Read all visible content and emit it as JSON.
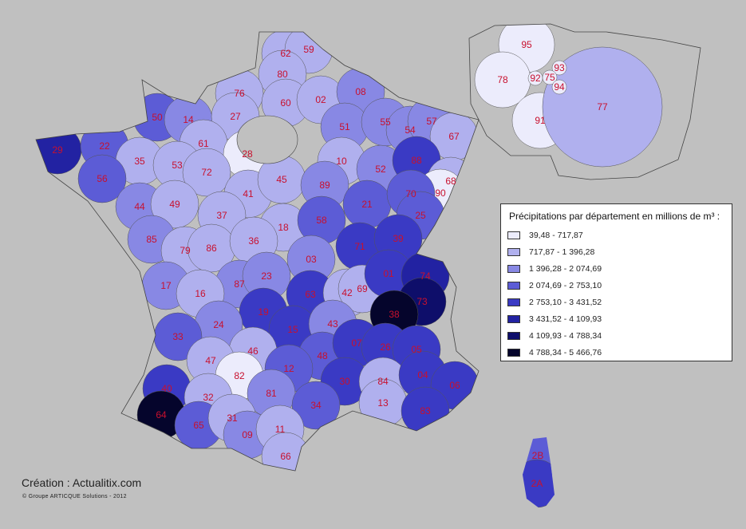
{
  "legend": {
    "title": "Précipitations par département en millions de m³ :",
    "classes": [
      {
        "label": "39,48 - 717,87",
        "color": "#ececfc"
      },
      {
        "label": "717,87 - 1 396,28",
        "color": "#b0b0ee"
      },
      {
        "label": "1 396,28 - 2 074,69",
        "color": "#8888e4"
      },
      {
        "label": "2 074,69 - 2 753,10",
        "color": "#5c5cd6"
      },
      {
        "label": "2 753,10 - 3 431,52",
        "color": "#3a3ac4"
      },
      {
        "label": "3 431,52 - 4 109,93",
        "color": "#2222a2"
      },
      {
        "label": "4 109,93 - 4 788,34",
        "color": "#0e0e6a"
      },
      {
        "label": "4 788,34 - 5 466,76",
        "color": "#05052c"
      }
    ]
  },
  "label_color": "#c8102e",
  "departments": [
    {
      "code": "62",
      "class": 1
    },
    {
      "code": "59",
      "class": 1
    },
    {
      "code": "80",
      "class": 1
    },
    {
      "code": "76",
      "class": 1
    },
    {
      "code": "60",
      "class": 1
    },
    {
      "code": "02",
      "class": 1
    },
    {
      "code": "08",
      "class": 2
    },
    {
      "code": "50",
      "class": 3
    },
    {
      "code": "14",
      "class": 2
    },
    {
      "code": "27",
      "class": 1
    },
    {
      "code": "51",
      "class": 2
    },
    {
      "code": "55",
      "class": 2
    },
    {
      "code": "54",
      "class": 2
    },
    {
      "code": "57",
      "class": 2
    },
    {
      "code": "67",
      "class": 1
    },
    {
      "code": "29",
      "class": 5
    },
    {
      "code": "22",
      "class": 3
    },
    {
      "code": "61",
      "class": 1
    },
    {
      "code": "28",
      "class": 0
    },
    {
      "code": "35",
      "class": 1
    },
    {
      "code": "53",
      "class": 1
    },
    {
      "code": "72",
      "class": 1
    },
    {
      "code": "10",
      "class": 1
    },
    {
      "code": "52",
      "class": 2
    },
    {
      "code": "88",
      "class": 4
    },
    {
      "code": "68",
      "class": 1
    },
    {
      "code": "90",
      "class": 0
    },
    {
      "code": "56",
      "class": 3
    },
    {
      "code": "44",
      "class": 2
    },
    {
      "code": "49",
      "class": 1
    },
    {
      "code": "41",
      "class": 1
    },
    {
      "code": "45",
      "class": 1
    },
    {
      "code": "89",
      "class": 2
    },
    {
      "code": "21",
      "class": 3
    },
    {
      "code": "70",
      "class": 3
    },
    {
      "code": "25",
      "class": 3
    },
    {
      "code": "37",
      "class": 1
    },
    {
      "code": "18",
      "class": 1
    },
    {
      "code": "58",
      "class": 3
    },
    {
      "code": "85",
      "class": 2
    },
    {
      "code": "79",
      "class": 1
    },
    {
      "code": "86",
      "class": 1
    },
    {
      "code": "36",
      "class": 1
    },
    {
      "code": "71",
      "class": 4
    },
    {
      "code": "39",
      "class": 4
    },
    {
      "code": "03",
      "class": 2
    },
    {
      "code": "17",
      "class": 2
    },
    {
      "code": "87",
      "class": 2
    },
    {
      "code": "23",
      "class": 2
    },
    {
      "code": "63",
      "class": 4
    },
    {
      "code": "42",
      "class": 1
    },
    {
      "code": "69",
      "class": 1
    },
    {
      "code": "01",
      "class": 4
    },
    {
      "code": "74",
      "class": 5
    },
    {
      "code": "73",
      "class": 6
    },
    {
      "code": "16",
      "class": 1
    },
    {
      "code": "19",
      "class": 4
    },
    {
      "code": "38",
      "class": 7
    },
    {
      "code": "24",
      "class": 2
    },
    {
      "code": "15",
      "class": 4
    },
    {
      "code": "43",
      "class": 2
    },
    {
      "code": "33",
      "class": 3
    },
    {
      "code": "46",
      "class": 1
    },
    {
      "code": "48",
      "class": 3
    },
    {
      "code": "07",
      "class": 4
    },
    {
      "code": "26",
      "class": 4
    },
    {
      "code": "05",
      "class": 4
    },
    {
      "code": "47",
      "class": 1
    },
    {
      "code": "12",
      "class": 3
    },
    {
      "code": "30",
      "class": 4
    },
    {
      "code": "84",
      "class": 1
    },
    {
      "code": "04",
      "class": 4
    },
    {
      "code": "06",
      "class": 4
    },
    {
      "code": "40",
      "class": 4
    },
    {
      "code": "82",
      "class": 0
    },
    {
      "code": "32",
      "class": 1
    },
    {
      "code": "81",
      "class": 2
    },
    {
      "code": "34",
      "class": 3
    },
    {
      "code": "13",
      "class": 1
    },
    {
      "code": "83",
      "class": 4
    },
    {
      "code": "64",
      "class": 7
    },
    {
      "code": "65",
      "class": 3
    },
    {
      "code": "31",
      "class": 1
    },
    {
      "code": "09",
      "class": 2
    },
    {
      "code": "11",
      "class": 1
    },
    {
      "code": "66",
      "class": 1
    },
    {
      "code": "2B",
      "class": 3
    },
    {
      "code": "2A",
      "class": 4
    },
    {
      "code": "95",
      "class": 0
    },
    {
      "code": "78",
      "class": 0
    },
    {
      "code": "92",
      "class": 0
    },
    {
      "code": "93",
      "class": 0
    },
    {
      "code": "75",
      "class": 0
    },
    {
      "code": "94",
      "class": 0
    },
    {
      "code": "91",
      "class": 0
    },
    {
      "code": "77",
      "class": 1
    }
  ],
  "credit": "Création : Actualitix.com",
  "copyright": "© Groupe ARTICQUE Solutions - 2012"
}
